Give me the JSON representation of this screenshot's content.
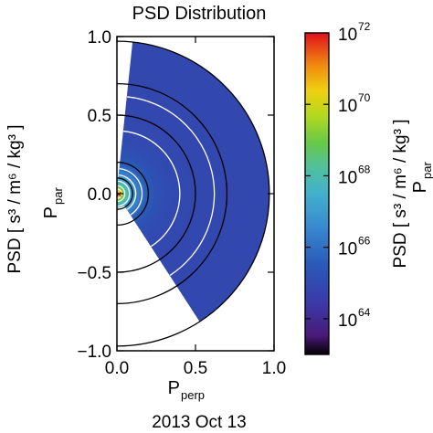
{
  "chart_data": {
    "type": "heatmap",
    "title": "PSD Distribution",
    "xlabel": {
      "main": "P",
      "sub": "perp"
    },
    "ylabel": {
      "main": "P",
      "sub": "par"
    },
    "ylabel_units": "PSD [ s³ / m⁶ / kg³ ]",
    "xlim": [
      0.0,
      1.0
    ],
    "ylim": [
      -1.0,
      1.0
    ],
    "x_ticks": [
      "0.0",
      "0.5",
      "1.0"
    ],
    "x_tick_values": [
      0.0,
      0.5,
      1.0
    ],
    "y_ticks": [
      "−1.0",
      "−0.5",
      "0.0",
      "0.5",
      "1.0"
    ],
    "y_tick_values": [
      -1.0,
      -0.5,
      0.0,
      0.5,
      1.0
    ],
    "date": "2013 Oct 13",
    "colorbar": {
      "scale": "log",
      "range_exponent": [
        63,
        72
      ],
      "tick_exponents": [
        64,
        66,
        68,
        70,
        72
      ],
      "tick_base": "10",
      "label_main": "PSD [ s³ / m⁶ / kg³ ]",
      "label_p": "P",
      "label_p_sub": "par"
    },
    "data_region": {
      "p_max": 0.97,
      "p_min": 0.09,
      "angle_start_deg": 6,
      "angle_end_deg": 147
    },
    "reference_circles_radius": [
      0.1,
      0.2,
      0.5,
      0.7,
      0.97
    ],
    "contours_radius": [
      0.03,
      0.05,
      0.08,
      0.12,
      0.16,
      0.4,
      0.62
    ],
    "origin_marker": "×"
  }
}
